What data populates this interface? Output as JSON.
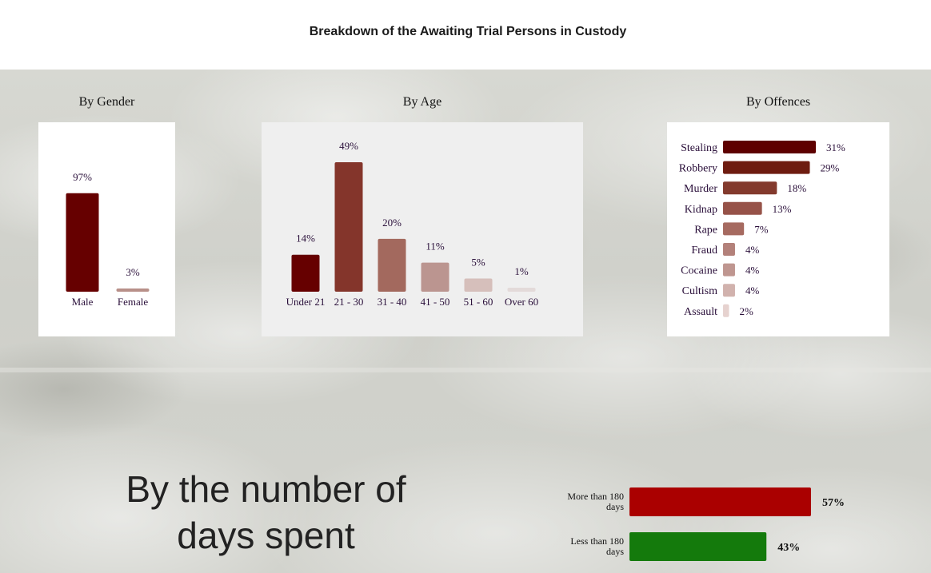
{
  "page_title": "Breakdown of the Awaiting Trial Persons in Custody",
  "chart_data": [
    {
      "type": "bar",
      "title": "By Gender",
      "categories": [
        "Male",
        "Female"
      ],
      "values": [
        97,
        3
      ],
      "value_labels": [
        "97%",
        "3%"
      ],
      "colors": [
        "#660000",
        "#b89089"
      ],
      "ylim": [
        0,
        100
      ]
    },
    {
      "type": "bar",
      "title": "By Age",
      "categories": [
        "Under 21",
        "21 - 30",
        "31 - 40",
        "41 - 50",
        "51 - 60",
        "Over 60"
      ],
      "values": [
        14,
        49,
        20,
        11,
        5,
        1
      ],
      "value_labels": [
        "14%",
        "49%",
        "20%",
        "11%",
        "5%",
        "1%"
      ],
      "colors": [
        "#660000",
        "#84352b",
        "#a3695e",
        "#bb9590",
        "#d6bfbb",
        "#e3dad9"
      ],
      "ylim": [
        0,
        49
      ]
    },
    {
      "type": "bar",
      "orientation": "horizontal",
      "title": "By Offences",
      "categories": [
        "Stealing",
        "Robbery",
        "Murder",
        "Kidnap",
        "Rape",
        "Fraud",
        "Cocaine",
        "Cultism",
        "Assault"
      ],
      "values": [
        31,
        29,
        18,
        13,
        7,
        4,
        4,
        4,
        2
      ],
      "value_labels": [
        "31%",
        "29%",
        "18%",
        "13%",
        "7%",
        "4%",
        "4%",
        "4%",
        "2%"
      ],
      "colors": [
        "#5e0000",
        "#6e1c10",
        "#833a2d",
        "#965248",
        "#a66a60",
        "#b3817a",
        "#bf9690",
        "#d1b2ad",
        "#e6d2cf"
      ],
      "xlim": [
        0,
        31
      ]
    },
    {
      "type": "bar",
      "orientation": "horizontal",
      "title": "By the number of days spent",
      "categories": [
        "More than 180 days",
        "Less than 180 days"
      ],
      "category_lines": [
        [
          "More than 180",
          "days"
        ],
        [
          "Less than 180",
          "days"
        ]
      ],
      "values": [
        57,
        43
      ],
      "value_labels": [
        "57%",
        "43%"
      ],
      "colors": [
        "#aa0000",
        "#147a0c"
      ],
      "xlim": [
        0,
        57
      ]
    }
  ]
}
